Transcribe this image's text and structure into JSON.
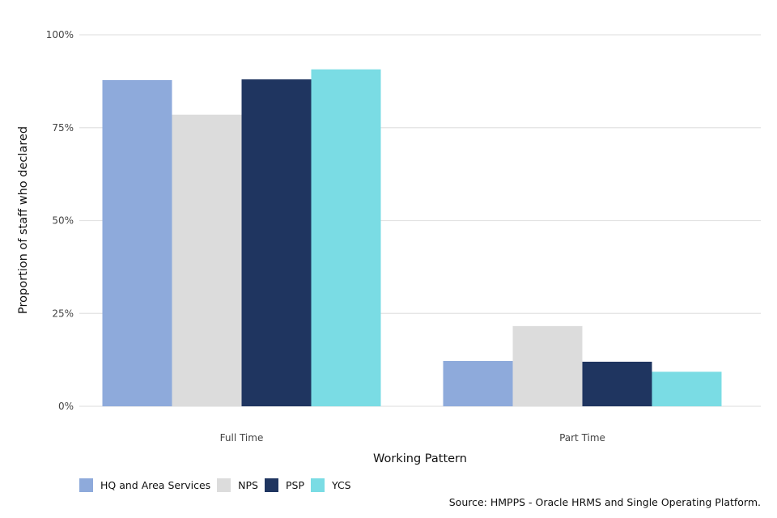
{
  "chart_data": {
    "type": "bar",
    "title": "",
    "xlabel": "Working Pattern",
    "ylabel": "Proportion of staff who declared",
    "categories": [
      "Full Time",
      "Part Time"
    ],
    "ylim": [
      0,
      1
    ],
    "y_ticks": [
      0,
      0.25,
      0.5,
      0.75,
      1
    ],
    "y_tick_labels": [
      "0%",
      "25%",
      "50%",
      "75%",
      "100%"
    ],
    "grid": true,
    "legend_position": "bottom-left",
    "series": [
      {
        "name": "HQ and Area Services",
        "color": "#8eaadb",
        "values": [
          0.878,
          0.122
        ]
      },
      {
        "name": "NPS",
        "color": "#dcdcdc",
        "values": [
          0.785,
          0.216
        ]
      },
      {
        "name": "PSP",
        "color": "#1f3560",
        "values": [
          0.88,
          0.12
        ]
      },
      {
        "name": "YCS",
        "color": "#7adce4",
        "values": [
          0.907,
          0.093
        ]
      }
    ],
    "source": "Source: HMPPS - Oracle HRMS and Single Operating Platform."
  }
}
